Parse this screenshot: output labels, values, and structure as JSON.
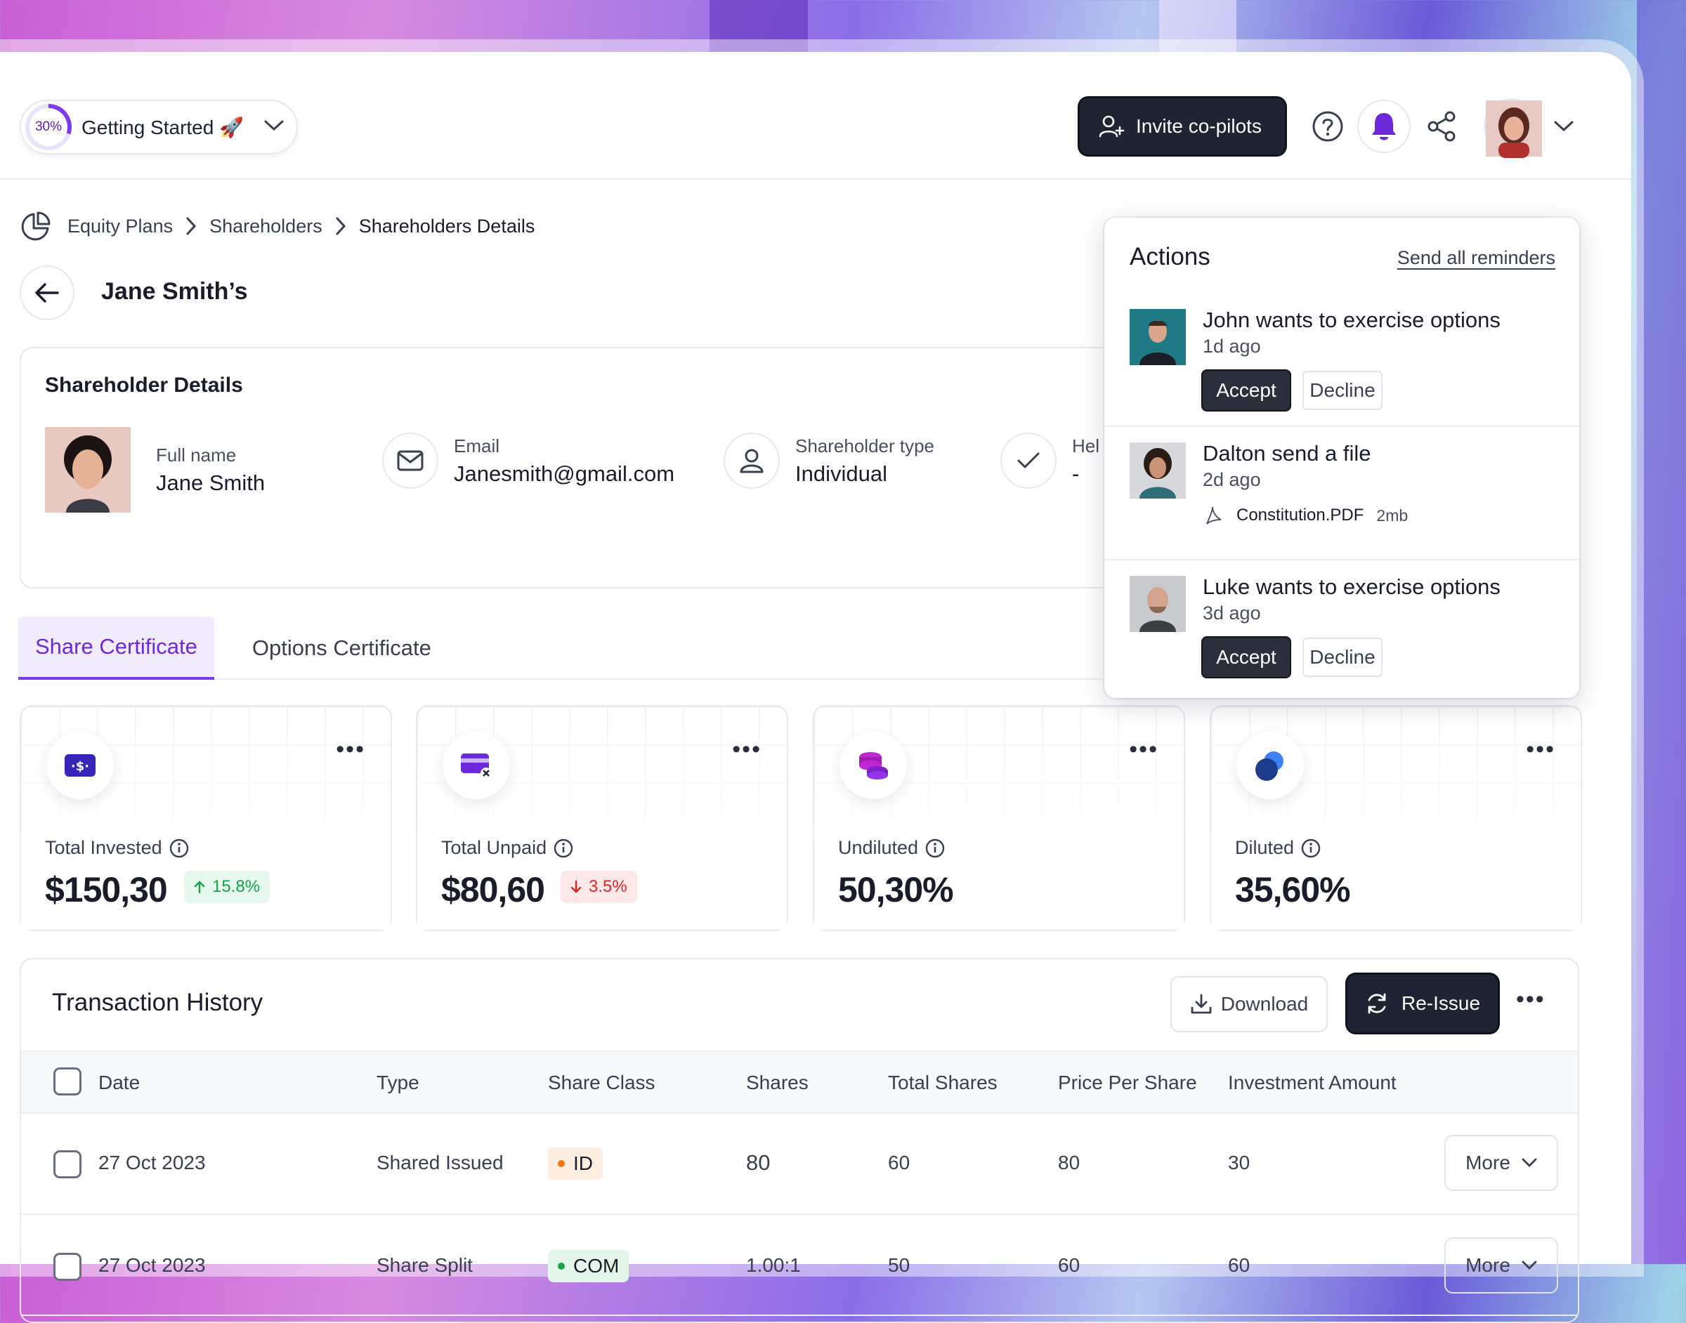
{
  "colors": {
    "accent": "#7c3aed",
    "dark_button": "#1f2433",
    "positive": "#16a34a",
    "negative": "#dc2626"
  },
  "topbar": {
    "getting_started": {
      "progress_percent": 30,
      "progress_label": "30%",
      "label": "Getting Started 🚀"
    },
    "invite_label": "Invite co-pilots",
    "icons": [
      "help-icon",
      "bell-icon",
      "share-icon",
      "chevron-down-icon"
    ]
  },
  "breadcrumb": {
    "items": [
      "Equity Plans",
      "Shareholders",
      "Shareholders Details"
    ]
  },
  "page": {
    "title": "Jane Smith’s"
  },
  "details": {
    "heading": "Shareholder Details",
    "full_name_label": "Full name",
    "full_name": "Jane Smith",
    "email_label": "Email",
    "email": "Janesmith@gmail.com",
    "type_label": "Shareholder type",
    "type": "Individual",
    "held_label": "Hel",
    "held": "-"
  },
  "tabs": [
    {
      "label": "Share Certificate",
      "active": true
    },
    {
      "label": "Options Certificate",
      "active": false
    }
  ],
  "stats": [
    {
      "label": "Total Invested",
      "value": "$150,30",
      "badge": "15.8%",
      "trend": "up",
      "icon": "money-icon"
    },
    {
      "label": "Total Unpaid",
      "value": "$80,60",
      "badge": "3.5%",
      "trend": "down",
      "icon": "card-x-icon"
    },
    {
      "label": "Undiluted",
      "value": "50,30%",
      "icon": "coins-stack-icon"
    },
    {
      "label": "Diluted",
      "value": "35,60%",
      "icon": "bubbles-icon"
    }
  ],
  "transactions": {
    "title": "Transaction History",
    "download_label": "Download",
    "reissue_label": "Re-Issue",
    "columns": [
      "Date",
      "Type",
      "Share Class",
      "Shares",
      "Total Shares",
      "Price Per Share",
      "Investment Amount"
    ],
    "rows": [
      {
        "date": "27 Oct 2023",
        "type": "Shared Issued",
        "share_class": "ID",
        "class_color": "#f97316",
        "class_bg": "#fdeee0",
        "shares": "80",
        "total_shares": "60",
        "price": "80",
        "amount": "30",
        "more": "More"
      },
      {
        "date": "27 Oct 2023",
        "type": "Share Split",
        "share_class": "COM",
        "class_color": "#16a34a",
        "class_bg": "#e4f6ea",
        "shares": "1.00:1",
        "total_shares": "50",
        "price": "60",
        "amount": "60",
        "more": "More"
      }
    ]
  },
  "actions_panel": {
    "title": "Actions",
    "send_all": "Send all reminders",
    "items": [
      {
        "text": "John wants to exercise options",
        "time": "1d ago",
        "accept": "Accept",
        "decline": "Decline"
      },
      {
        "text": "Dalton send a file",
        "time": "2d ago",
        "file_name": "Constitution.PDF",
        "file_size": "2mb"
      },
      {
        "text": "Luke wants to exercise options",
        "time": "3d ago",
        "accept": "Accept",
        "decline": "Decline"
      }
    ]
  }
}
